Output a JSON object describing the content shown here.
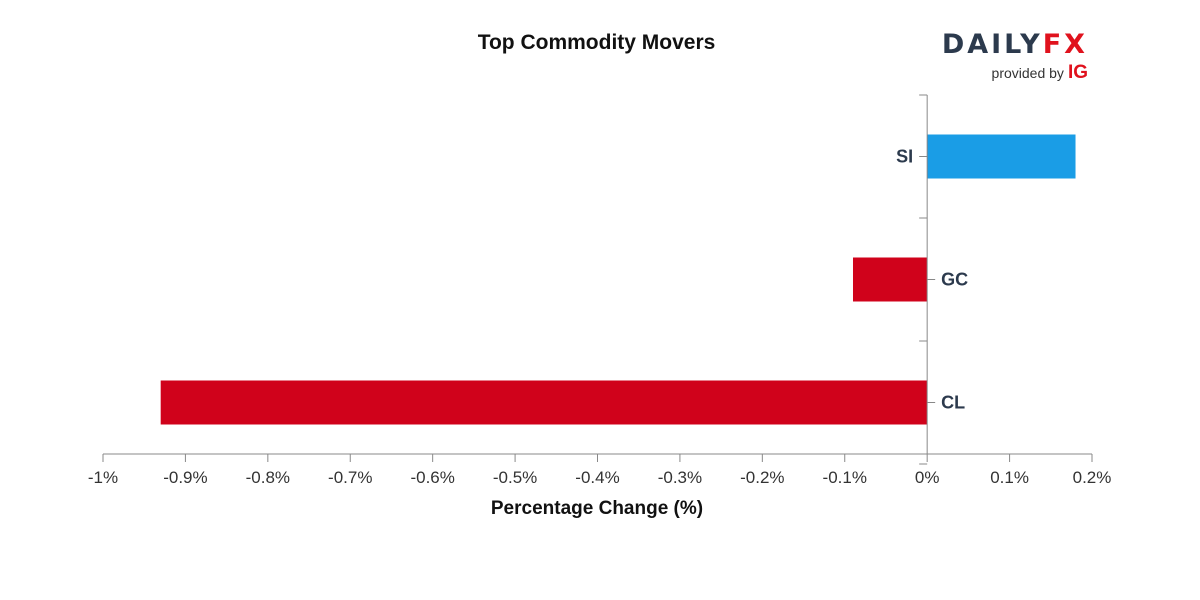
{
  "brand": {
    "word_left": "DAILY",
    "word_right": "FX",
    "provided_by": "provided by",
    "ig": "IG"
  },
  "colors": {
    "positive": "#1a9de6",
    "negative": "#d0021b",
    "axis": "#888888"
  },
  "chart_data": {
    "type": "bar",
    "orientation": "horizontal",
    "title": "Top Commodity Movers",
    "xlabel": "Percentage Change (%)",
    "ylabel": "",
    "xlim": [
      -1.0,
      0.2
    ],
    "xticks": [
      -1.0,
      -0.9,
      -0.8,
      -0.7,
      -0.6,
      -0.5,
      -0.4,
      -0.3,
      -0.2,
      -0.1,
      0,
      0.1,
      0.2
    ],
    "xtick_labels": [
      "-1%",
      "-0.9%",
      "-0.8%",
      "-0.7%",
      "-0.6%",
      "-0.5%",
      "-0.4%",
      "-0.3%",
      "-0.2%",
      "-0.1%",
      "0%",
      "0.1%",
      "0.2%"
    ],
    "categories": [
      "SI",
      "GC",
      "CL"
    ],
    "values": [
      0.18,
      -0.09,
      -0.93
    ],
    "grid": false,
    "legend": "none"
  }
}
